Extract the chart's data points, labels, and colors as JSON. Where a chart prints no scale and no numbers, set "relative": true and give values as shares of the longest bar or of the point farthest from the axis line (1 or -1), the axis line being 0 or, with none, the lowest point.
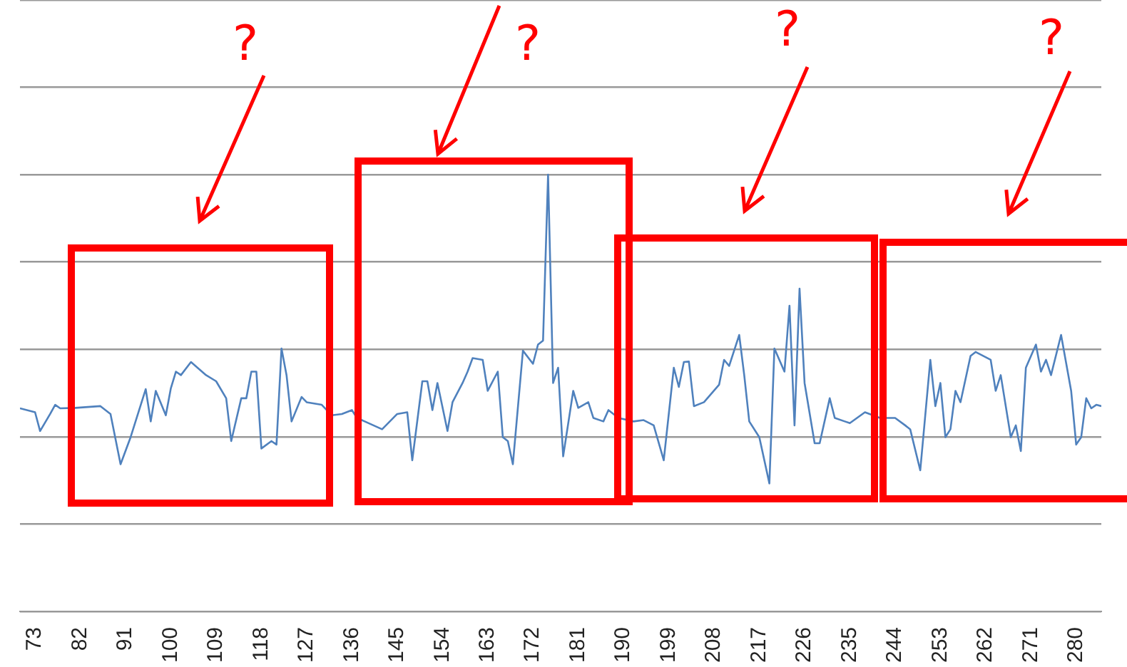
{
  "chart_data": {
    "type": "line",
    "relative": true,
    "grid": "y",
    "marker": "none",
    "line_style": "solid",
    "legend": false,
    "annotations": [
      "?",
      "?",
      "?",
      "?"
    ],
    "xlim": [
      70,
      285
    ],
    "xticks": [
      73,
      82,
      91,
      100,
      109,
      118,
      127,
      136,
      145,
      154,
      163,
      172,
      181,
      190,
      199,
      208,
      217,
      226,
      235,
      244,
      253,
      262,
      271,
      280
    ],
    "series": [
      {
        "color": "#4f81bd",
        "x": [
          70,
          73,
          74,
          76,
          77,
          78,
          81,
          86,
          87,
          88,
          90,
          92,
          95,
          96,
          97,
          99,
          100,
          101,
          102,
          104,
          107,
          109,
          111,
          112,
          114,
          115,
          116,
          117,
          118,
          120,
          121,
          122,
          123,
          124,
          126,
          127,
          130,
          132,
          134,
          136,
          137,
          142,
          145,
          147,
          148,
          150,
          151,
          152,
          153,
          155,
          156,
          158,
          159,
          160,
          162,
          163,
          165,
          166,
          167,
          168,
          170,
          172,
          173,
          174,
          175,
          176,
          177,
          178,
          180,
          181,
          183,
          184,
          186,
          187,
          189,
          192,
          194,
          196,
          198,
          200,
          201,
          202,
          203,
          204,
          206,
          209,
          210,
          211,
          213,
          214,
          215,
          217,
          219,
          220,
          222,
          223,
          224,
          225,
          226,
          228,
          229,
          231,
          232,
          234,
          235,
          238,
          241,
          244,
          246,
          247,
          249,
          251,
          252,
          253,
          254,
          255,
          256,
          257,
          259,
          260,
          263,
          264,
          265,
          267,
          268,
          269,
          270,
          272,
          273,
          274,
          275,
          277,
          279,
          280,
          281,
          282,
          283,
          284,
          285
        ],
        "values": [
          0.465,
          0.456,
          0.413,
          0.452,
          0.473,
          0.465,
          0.466,
          0.47,
          0.461,
          0.452,
          0.337,
          0.399,
          0.509,
          0.435,
          0.505,
          0.449,
          0.511,
          0.549,
          0.541,
          0.571,
          0.541,
          0.527,
          0.488,
          0.39,
          0.488,
          0.488,
          0.549,
          0.549,
          0.373,
          0.39,
          0.382,
          0.602,
          0.541,
          0.435,
          0.491,
          0.479,
          0.473,
          0.449,
          0.452,
          0.461,
          0.443,
          0.417,
          0.452,
          0.456,
          0.346,
          0.527,
          0.527,
          0.461,
          0.523,
          0.413,
          0.479,
          0.523,
          0.549,
          0.58,
          0.576,
          0.505,
          0.549,
          0.399,
          0.39,
          0.337,
          0.597,
          0.567,
          0.611,
          0.62,
          1,
          0.523,
          0.558,
          0.355,
          0.505,
          0.466,
          0.479,
          0.443,
          0.435,
          0.461,
          0.443,
          0.435,
          0.438,
          0.426,
          0.346,
          0.558,
          0.514,
          0.571,
          0.572,
          0.47,
          0.479,
          0.519,
          0.576,
          0.562,
          0.633,
          0.541,
          0.435,
          0.399,
          0.293,
          0.602,
          0.549,
          0.7,
          0.426,
          0.739,
          0.523,
          0.385,
          0.385,
          0.488,
          0.443,
          0.435,
          0.431,
          0.456,
          0.443,
          0.443,
          0.426,
          0.417,
          0.323,
          0.576,
          0.47,
          0.523,
          0.399,
          0.417,
          0.505,
          0.479,
          0.585,
          0.594,
          0.576,
          0.505,
          0.541,
          0.399,
          0.426,
          0.367,
          0.558,
          0.611,
          0.549,
          0.576,
          0.541,
          0.633,
          0.505,
          0.382,
          0.399,
          0.488,
          0.465,
          0.473,
          0.47
        ]
      }
    ]
  }
}
